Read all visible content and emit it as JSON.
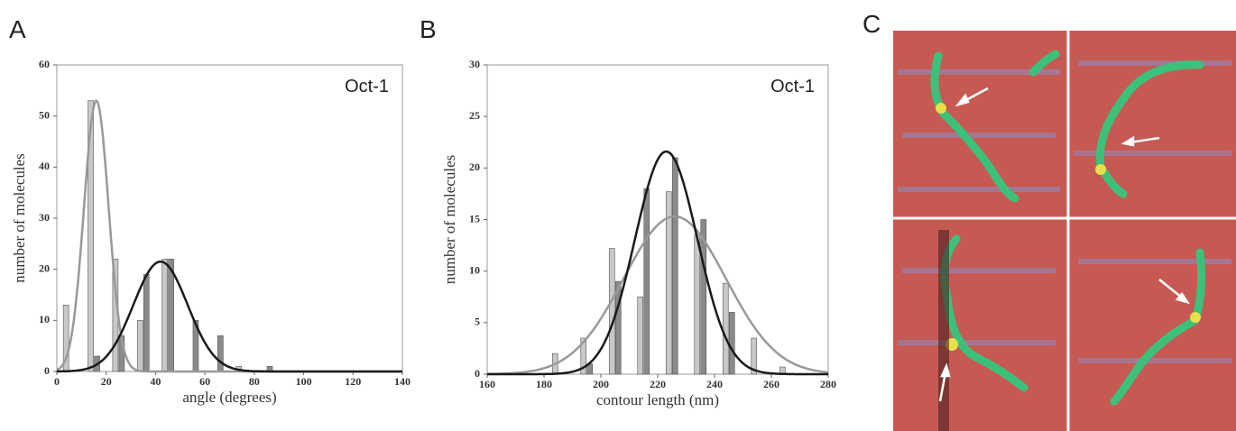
{
  "panels": [
    "A",
    "B",
    "C"
  ],
  "chart_data": [
    {
      "type": "bar",
      "title": "Oct-1",
      "xlabel": "angle (degrees)",
      "ylabel": "number of molecules",
      "x": [
        5,
        15,
        25,
        35,
        45,
        55,
        65,
        75,
        85
      ],
      "series": [
        {
          "color": "#c8c8c8",
          "values": [
            13,
            53,
            22,
            10,
            22,
            0,
            0,
            1,
            0
          ]
        },
        {
          "color": "#8a8a8a",
          "values": [
            0,
            3,
            7,
            19,
            22,
            10,
            7,
            0,
            1
          ]
        }
      ],
      "fits": [
        {
          "color": "#999999",
          "peak": 53,
          "center": 16,
          "width": 5
        },
        {
          "color": "#1a1a1a",
          "peak": 21.5,
          "center": 42,
          "width": 11
        }
      ],
      "xlim": [
        0,
        140
      ],
      "xticks": [
        0,
        20,
        40,
        60,
        80,
        100,
        120,
        140
      ],
      "ylim": [
        0,
        60
      ],
      "yticks": [
        0,
        10,
        20,
        30,
        40,
        50,
        60
      ]
    },
    {
      "type": "bar",
      "title": "Oct-1",
      "xlabel": "contour length (nm)",
      "ylabel": "number of molecules",
      "x": [
        185,
        195,
        205,
        215,
        225,
        235,
        245,
        255,
        265
      ],
      "series": [
        {
          "color": "#c8c8c8",
          "values": [
            2,
            3.5,
            12.2,
            7.5,
            17.7,
            13.5,
            8.8,
            3.5,
            0.7
          ]
        },
        {
          "color": "#8a8a8a",
          "values": [
            0,
            1,
            9,
            18,
            21,
            15,
            6,
            0,
            0
          ]
        }
      ],
      "fits": [
        {
          "color": "#999999",
          "peak": 15.3,
          "center": 226,
          "width": 18
        },
        {
          "color": "#1a1a1a",
          "peak": 21.6,
          "center": 223,
          "width": 11
        }
      ],
      "xlim": [
        160,
        280
      ],
      "xticks": [
        160,
        180,
        200,
        220,
        240,
        260,
        280
      ],
      "ylim": [
        0,
        30
      ],
      "yticks": [
        0,
        5,
        10,
        15,
        20,
        25,
        30
      ]
    }
  ]
}
